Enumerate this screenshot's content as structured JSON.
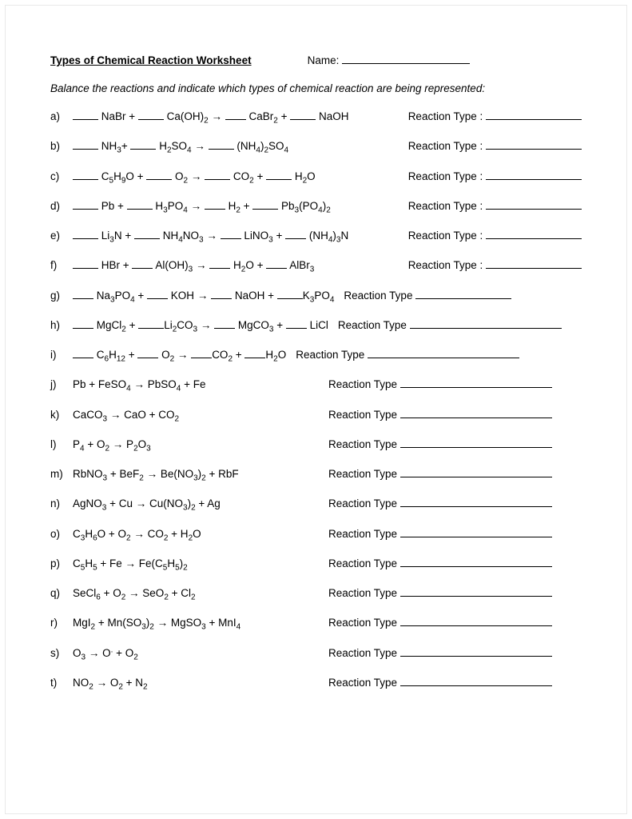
{
  "header": {
    "title": "Types of Chemical Reaction Worksheet",
    "name_label": "Name:"
  },
  "instructions": "Balance the reactions and indicate which types of chemical reaction are being represented:",
  "arrow": "→",
  "reaction_type_label_colon": "Reaction Type :",
  "reaction_type_label": "Reaction Type",
  "items": [
    {
      "letter": "a)",
      "style": 1,
      "parts": [
        "blank",
        " NaBr + ",
        "blank",
        " Ca(OH)",
        [
          "sub",
          "2"
        ],
        " ",
        "arrow",
        " ",
        "blank-s",
        " CaBr",
        [
          "sub",
          "2"
        ],
        " + ",
        "blank",
        " NaOH"
      ]
    },
    {
      "letter": "b)",
      "style": 1,
      "parts": [
        "blank",
        " NH",
        [
          "sub",
          "3"
        ],
        "+ ",
        "blank",
        " H",
        [
          "sub",
          "2"
        ],
        "SO",
        [
          "sub",
          "4"
        ],
        " ",
        "arrow",
        " ",
        "blank",
        " (NH",
        [
          "sub",
          "4"
        ],
        ")",
        [
          "sub",
          "2"
        ],
        "SO",
        [
          "sub",
          "4"
        ]
      ]
    },
    {
      "letter": "c)",
      "style": 1,
      "parts": [
        "blank",
        " C",
        [
          "sub",
          "5"
        ],
        "H",
        [
          "sub",
          "9"
        ],
        "O + ",
        "blank",
        " O",
        [
          "sub",
          "2"
        ],
        " ",
        "arrow",
        " ",
        "blank",
        " CO",
        [
          "sub",
          "2"
        ],
        " + ",
        "blank",
        " H",
        [
          "sub",
          "2"
        ],
        "O"
      ]
    },
    {
      "letter": "d)",
      "style": 1,
      "parts": [
        "blank",
        " Pb + ",
        "blank",
        " H",
        [
          "sub",
          "3"
        ],
        "PO",
        [
          "sub",
          "4"
        ],
        " ",
        "arrow",
        " ",
        "blank-s",
        " H",
        [
          "sub",
          "2"
        ],
        " + ",
        "blank",
        " Pb",
        [
          "sub",
          "3"
        ],
        "(PO",
        [
          "sub",
          "4"
        ],
        ")",
        [
          "sub",
          "2"
        ]
      ]
    },
    {
      "letter": "e)",
      "style": 1,
      "parts": [
        "blank",
        " Li",
        [
          "sub",
          "3"
        ],
        "N + ",
        "blank",
        " NH",
        [
          "sub",
          "4"
        ],
        "NO",
        [
          "sub",
          "3"
        ],
        " ",
        "arrow",
        " ",
        "blank-s",
        " LiNO",
        [
          "sub",
          "3"
        ],
        " + ",
        "blank-s",
        " (NH",
        [
          "sub",
          "4"
        ],
        ")",
        [
          "sub",
          "3"
        ],
        "N"
      ]
    },
    {
      "letter": "f)",
      "style": 1,
      "parts": [
        "blank",
        " HBr + ",
        "blank-s",
        " Al(OH)",
        [
          "sub",
          "3"
        ],
        " ",
        "arrow",
        " ",
        "blank-s",
        " H",
        [
          "sub",
          "2"
        ],
        "O + ",
        "blank-s",
        " AlBr",
        [
          "sub",
          "3"
        ]
      ]
    },
    {
      "letter": "g)",
      "style": 1,
      "nogap": true,
      "parts": [
        "blank-s",
        " Na",
        [
          "sub",
          "3"
        ],
        "PO",
        [
          "sub",
          "4"
        ],
        " + ",
        "blank-s",
        " KOH ",
        "arrow",
        " ",
        "blank-s",
        " NaOH + ",
        "blank",
        "K",
        [
          "sub",
          "3"
        ],
        "PO",
        [
          "sub",
          "4"
        ]
      ]
    },
    {
      "letter": "h)",
      "style": 1,
      "nogap": true,
      "long": true,
      "parts": [
        "blank-s",
        " MgCl",
        [
          "sub",
          "2"
        ],
        " + ",
        "blank",
        "Li",
        [
          "sub",
          "2"
        ],
        "CO",
        [
          "sub",
          "3"
        ],
        " ",
        "arrow",
        " ",
        "blank-s",
        " MgCO",
        [
          "sub",
          "3"
        ],
        " + ",
        "blank-s",
        " LiCl"
      ]
    },
    {
      "letter": "i)",
      "style": 1,
      "nogap": true,
      "long": true,
      "parts": [
        "blank-s",
        " C",
        [
          "sub",
          "6"
        ],
        "H",
        [
          "sub",
          "12"
        ],
        " + ",
        "blank-s",
        " O",
        [
          "sub",
          "2"
        ],
        " ",
        "arrow",
        " ",
        "blank-s",
        "CO",
        [
          "sub",
          "2"
        ],
        " + ",
        "blank-s",
        "H",
        [
          "sub",
          "2"
        ],
        "O"
      ]
    },
    {
      "letter": "j)",
      "style": 2,
      "parts": [
        "Pb +  FeSO",
        [
          "sub",
          "4"
        ],
        " ",
        "arrow",
        "  PbSO",
        [
          "sub",
          "4"
        ],
        " +   Fe"
      ]
    },
    {
      "letter": "k)",
      "style": 2,
      "parts": [
        " CaCO",
        [
          "sub",
          "3"
        ],
        " ",
        "arrow",
        "   CaO +  CO",
        [
          "sub",
          "2"
        ]
      ]
    },
    {
      "letter": "l)",
      "style": 2,
      "parts": [
        "  P",
        [
          "sub",
          "4"
        ],
        " +   O",
        [
          "sub",
          "2"
        ],
        " ",
        "arrow",
        "   P",
        [
          "sub",
          "2"
        ],
        "O",
        [
          "sub",
          "3"
        ]
      ]
    },
    {
      "letter": "m)",
      "style": 2,
      "parts": [
        "  RbNO",
        [
          "sub",
          "3"
        ],
        " +  BeF",
        [
          "sub",
          "2"
        ],
        " ",
        "arrow",
        "  Be(NO",
        [
          "sub",
          "3"
        ],
        ")",
        [
          "sub",
          "2"
        ],
        " +   RbF"
      ]
    },
    {
      "letter": "n)",
      "style": 2,
      "parts": [
        "   AgNO",
        [
          "sub",
          "3"
        ],
        " +  Cu ",
        "arrow",
        "  Cu(NO",
        [
          "sub",
          "3"
        ],
        ")",
        [
          "sub",
          "2"
        ],
        " +   Ag"
      ]
    },
    {
      "letter": "o)",
      "style": 2,
      "parts": [
        "   C",
        [
          "sub",
          "3"
        ],
        "H",
        [
          "sub",
          "6"
        ],
        "O +   O",
        [
          "sub",
          "2"
        ],
        " ",
        "arrow",
        "  CO",
        [
          "sub",
          "2"
        ],
        " +   H",
        [
          "sub",
          "2"
        ],
        "O"
      ]
    },
    {
      "letter": "p)",
      "style": 2,
      "parts": [
        "   C",
        [
          "sub",
          "5"
        ],
        "H",
        [
          "sub",
          "5"
        ],
        " + Fe ",
        "arrow",
        "  Fe(C",
        [
          "sub",
          "5"
        ],
        "H",
        [
          "sub",
          "5"
        ],
        ")",
        [
          "sub",
          "2"
        ]
      ]
    },
    {
      "letter": "q)",
      "style": 2,
      "parts": [
        "  SeCl",
        [
          "sub",
          "6"
        ],
        " +  O",
        [
          "sub",
          "2"
        ],
        " ",
        "arrow",
        "  SeO",
        [
          "sub",
          "2"
        ],
        " +  Cl",
        [
          "sub",
          "2"
        ]
      ]
    },
    {
      "letter": "r)",
      "style": 2,
      "parts": [
        "  MgI",
        [
          "sub",
          "2"
        ],
        " +  Mn(SO",
        [
          "sub",
          "3"
        ],
        ")",
        [
          "sub",
          "2"
        ],
        " ",
        "arrow",
        "   MgSO",
        [
          "sub",
          "3"
        ],
        " +  MnI",
        [
          "sub",
          "4"
        ]
      ]
    },
    {
      "letter": "s)",
      "style": 2,
      "parts": [
        "   O",
        [
          "sub",
          "3"
        ],
        "  ",
        "arrow",
        "   O",
        [
          "sup",
          "."
        ],
        " +  O",
        [
          "sub",
          "2"
        ]
      ]
    },
    {
      "letter": "t)",
      "style": 2,
      "parts": [
        "   NO",
        [
          "sub",
          "2"
        ],
        " ",
        "arrow",
        "   O",
        [
          "sub",
          "2"
        ],
        " +   N",
        [
          "sub",
          "2"
        ]
      ]
    }
  ]
}
